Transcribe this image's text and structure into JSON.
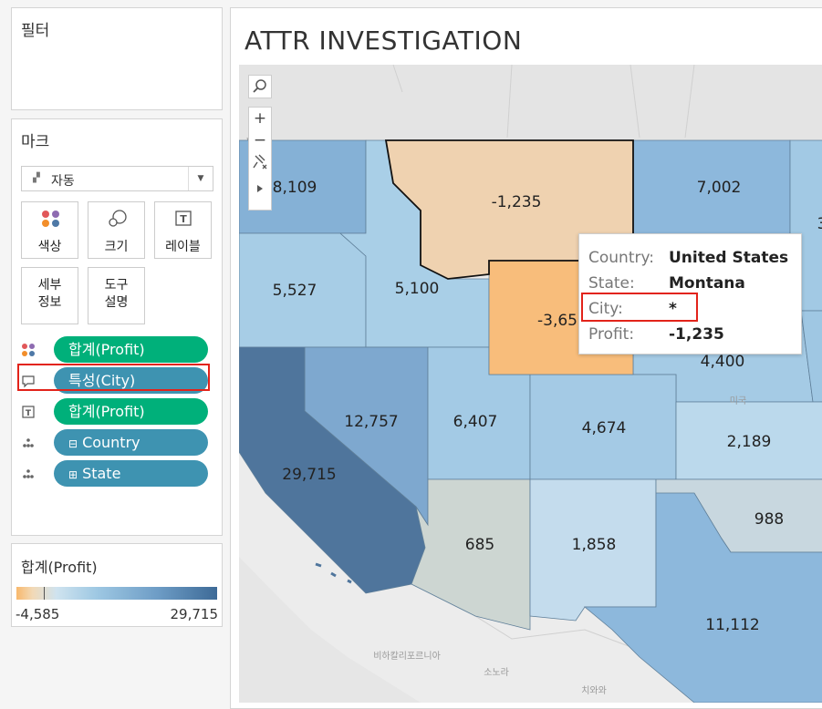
{
  "filters": {
    "title": "필터"
  },
  "marks": {
    "title": "마크",
    "type_dropdown": {
      "icon": "map-icon",
      "label": "자동"
    },
    "buttons": [
      {
        "label": "색상",
        "icon": "color-icon"
      },
      {
        "label": "크기",
        "icon": "size-icon"
      },
      {
        "label": "레이블",
        "icon": "label-icon"
      },
      {
        "label_line1": "세부",
        "label_line2": "정보",
        "icon": ""
      },
      {
        "label_line1": "도구",
        "label_line2": "설명",
        "icon": ""
      }
    ],
    "shelf": [
      {
        "icon": "color-icon",
        "label": "합계(Profit)",
        "color": "#00b07a"
      },
      {
        "icon": "tooltip-icon",
        "label": "특성(City)",
        "color": "#3e93b1",
        "highlighted": true
      },
      {
        "icon": "label-icon",
        "label": "합계(Profit)",
        "color": "#00b07a"
      },
      {
        "icon": "detail-icon",
        "label": "Country",
        "prefix": "⊟",
        "color": "#3e93b1"
      },
      {
        "icon": "detail-icon",
        "label": "State",
        "prefix": "⊞",
        "color": "#3e93b1"
      }
    ]
  },
  "legend": {
    "title": "합계(Profit)",
    "min_label": "-4,585",
    "max_label": "29,715",
    "min": -4585,
    "max": 29715
  },
  "sheet": {
    "title": "ATTR INVESTIGATION"
  },
  "map": {
    "states": [
      {
        "name": "Washington",
        "value": "8,109"
      },
      {
        "name": "Oregon",
        "value": "5,527"
      },
      {
        "name": "Idaho",
        "value": "5,100"
      },
      {
        "name": "Montana",
        "value": "-1,235"
      },
      {
        "name": "North Dakota",
        "value": "7,002"
      },
      {
        "name": "Wyoming",
        "value": "-3,65"
      },
      {
        "name": "Nebraska",
        "value": "4,400"
      },
      {
        "name": "Nevada",
        "value": "12,757"
      },
      {
        "name": "Utah",
        "value": "6,407"
      },
      {
        "name": "Colorado",
        "value": "4,674"
      },
      {
        "name": "Kansas",
        "value": "2,189"
      },
      {
        "name": "California",
        "value": "29,715"
      },
      {
        "name": "Arizona",
        "value": "685"
      },
      {
        "name": "New Mexico",
        "value": "1,858"
      },
      {
        "name": "Oklahoma",
        "value": "988"
      },
      {
        "name": "Texas",
        "value": "11,112"
      },
      {
        "name": "Minnesota",
        "value": "3"
      }
    ],
    "basemap_labels": {
      "country": "미국",
      "baja": "비하칼리포르니아",
      "sonora": "소노라",
      "chihuahua": "치와와"
    }
  },
  "map_toolbar": {
    "search_icon": "search-icon",
    "zoom_in": "+",
    "zoom_out": "−",
    "pin_icon": "pin-icon",
    "expand_icon": "play-icon"
  },
  "tooltip": {
    "rows": [
      {
        "key": "Country:",
        "value": "United States"
      },
      {
        "key": "State:",
        "value": "Montana"
      },
      {
        "key": "City:",
        "value": "*"
      },
      {
        "key": "Profit:",
        "value": "-1,235"
      }
    ]
  },
  "colors": {
    "accent_green": "#00b07a",
    "pill_blue": "#3e93b1",
    "highlight_red": "#e2231a"
  }
}
